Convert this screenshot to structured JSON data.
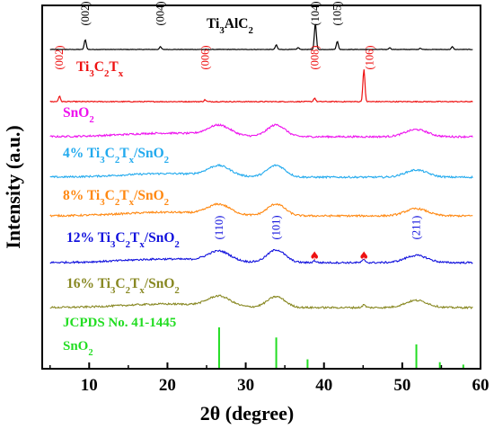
{
  "chart_data": {
    "type": "line",
    "xlabel": "2θ (degree)",
    "ylabel": "Intensity (a.u.)",
    "xlim": [
      4,
      60
    ],
    "x_ticks": [
      10,
      20,
      30,
      40,
      50,
      60
    ],
    "y_ticks_shown": false,
    "grid": false,
    "legend": "inline labels",
    "series": [
      {
        "name_parts": [
          {
            "t": "Ti",
            "s": "n"
          },
          {
            "t": "3",
            "s": "sub"
          },
          {
            "t": "AlC",
            "s": "n"
          },
          {
            "t": "2",
            "s": "sub"
          }
        ],
        "color": "#000000",
        "baseline": 0,
        "noise": 0.25,
        "peaks": [
          {
            "x": 9.5,
            "h": 11
          },
          {
            "x": 19.1,
            "h": 3
          },
          {
            "x": 33.9,
            "h": 5
          },
          {
            "x": 36.7,
            "h": 2
          },
          {
            "x": 38.9,
            "h": 29
          },
          {
            "x": 41.7,
            "h": 9
          },
          {
            "x": 48.4,
            "h": 2
          },
          {
            "x": 52.3,
            "h": 1.5
          },
          {
            "x": 56.4,
            "h": 3
          }
        ],
        "hkl": [
          {
            "x": 9.5,
            "label": "(002)"
          },
          {
            "x": 19.1,
            "label": "(004)"
          },
          {
            "x": 38.9,
            "label": "(104)"
          },
          {
            "x": 41.7,
            "label": "(105)"
          }
        ]
      },
      {
        "name_parts": [
          {
            "t": "Ti",
            "s": "n"
          },
          {
            "t": "3",
            "s": "sub"
          },
          {
            "t": "C",
            "s": "n"
          },
          {
            "t": "2",
            "s": "sub"
          },
          {
            "t": "T",
            "s": "n"
          },
          {
            "t": "x",
            "s": "sub"
          }
        ],
        "color": "#ee1111",
        "baseline": 0,
        "noise": 0.5,
        "peaks": [
          {
            "x": 6.2,
            "h": 6
          },
          {
            "x": 24.8,
            "h": 2
          },
          {
            "x": 38.8,
            "h": 4
          },
          {
            "x": 45.1,
            "h": 36
          }
        ],
        "hkl": [
          {
            "x": 6.2,
            "label": "(002)"
          },
          {
            "x": 24.8,
            "label": "(006)"
          },
          {
            "x": 38.8,
            "label": "(008)"
          },
          {
            "x": 45.8,
            "label": "(106)"
          }
        ]
      },
      {
        "name_parts": [
          {
            "t": "SnO",
            "s": "n"
          },
          {
            "t": "2",
            "s": "sub"
          }
        ],
        "color": "#ee11ee",
        "baseline": 0,
        "noise": 1.0,
        "peaks": [
          {
            "x": 26.6,
            "h": 11,
            "w": 2.0
          },
          {
            "x": 33.9,
            "h": 13,
            "w": 1.6
          },
          {
            "x": 51.8,
            "h": 8,
            "w": 2.0
          }
        ],
        "hkl": []
      },
      {
        "name_parts": [
          {
            "t": "4% Ti",
            "s": "n"
          },
          {
            "t": "3",
            "s": "sub"
          },
          {
            "t": "C",
            "s": "n"
          },
          {
            "t": "2",
            "s": "sub"
          },
          {
            "t": "T",
            "s": "n"
          },
          {
            "t": "x",
            "s": "sub"
          },
          {
            "t": "/SnO",
            "s": "n"
          },
          {
            "t": "2",
            "s": "sub"
          }
        ],
        "color": "#22aaee",
        "baseline": 0,
        "noise": 1.0,
        "peaks": [
          {
            "x": 26.6,
            "h": 11,
            "w": 2.0
          },
          {
            "x": 33.9,
            "h": 13,
            "w": 1.6
          },
          {
            "x": 51.8,
            "h": 8,
            "w": 2.0
          }
        ],
        "hkl": []
      },
      {
        "name_parts": [
          {
            "t": "8% Ti",
            "s": "n"
          },
          {
            "t": "3",
            "s": "sub"
          },
          {
            "t": "C",
            "s": "n"
          },
          {
            "t": "2",
            "s": "sub"
          },
          {
            "t": "T",
            "s": "n"
          },
          {
            "t": "x",
            "s": "sub"
          },
          {
            "t": "/SnO",
            "s": "n"
          },
          {
            "t": "2",
            "s": "sub"
          }
        ],
        "color": "#ff8811",
        "baseline": 0,
        "noise": 1.0,
        "peaks": [
          {
            "x": 26.6,
            "h": 11,
            "w": 2.0
          },
          {
            "x": 33.9,
            "h": 13,
            "w": 1.6
          },
          {
            "x": 51.8,
            "h": 8,
            "w": 2.0
          }
        ],
        "hkl": []
      },
      {
        "name_parts": [
          {
            "t": "12% Ti",
            "s": "n"
          },
          {
            "t": "3",
            "s": "sub"
          },
          {
            "t": "C",
            "s": "n"
          },
          {
            "t": "2",
            "s": "sub"
          },
          {
            "t": "T",
            "s": "n"
          },
          {
            "t": "x",
            "s": "sub"
          },
          {
            "t": "/SnO",
            "s": "n"
          },
          {
            "t": "2",
            "s": "sub"
          }
        ],
        "color": "#1111dd",
        "baseline": 0,
        "noise": 1.0,
        "peaks": [
          {
            "x": 26.6,
            "h": 11,
            "w": 2.0
          },
          {
            "x": 33.9,
            "h": 14,
            "w": 1.6
          },
          {
            "x": 38.8,
            "h": 2,
            "w": 0.3
          },
          {
            "x": 45.1,
            "h": 3,
            "w": 0.3
          },
          {
            "x": 51.8,
            "h": 8,
            "w": 2.0
          }
        ],
        "hkl": [
          {
            "x": 26.6,
            "label": "(110)"
          },
          {
            "x": 33.9,
            "label": "(101)"
          },
          {
            "x": 51.8,
            "label": "(211)"
          }
        ],
        "markers": [
          {
            "x": 38.8,
            "symbol": "♠"
          },
          {
            "x": 45.1,
            "symbol": "♠"
          }
        ]
      },
      {
        "name_parts": [
          {
            "t": "16% Ti",
            "s": "n"
          },
          {
            "t": "3",
            "s": "sub"
          },
          {
            "t": "C",
            "s": "n"
          },
          {
            "t": "2",
            "s": "sub"
          },
          {
            "t": "T",
            "s": "n"
          },
          {
            "t": "x",
            "s": "sub"
          },
          {
            "t": "/SnO",
            "s": "n"
          },
          {
            "t": "2",
            "s": "sub"
          }
        ],
        "color": "#888822",
        "baseline": 0,
        "noise": 1.0,
        "peaks": [
          {
            "x": 26.6,
            "h": 11,
            "w": 2.0
          },
          {
            "x": 33.9,
            "h": 12,
            "w": 1.6
          },
          {
            "x": 45.1,
            "h": 3,
            "w": 0.3
          },
          {
            "x": 51.8,
            "h": 8,
            "w": 2.0
          }
        ],
        "hkl": []
      }
    ],
    "reference": {
      "label_line1": "JCPDS No. 41-1445",
      "label_parts": [
        {
          "t": "SnO",
          "s": "n"
        },
        {
          "t": "2",
          "s": "sub"
        }
      ],
      "color": "#22dd22",
      "sticks": [
        {
          "x": 26.6,
          "h": 100
        },
        {
          "x": 33.9,
          "h": 75
        },
        {
          "x": 37.9,
          "h": 21
        },
        {
          "x": 51.8,
          "h": 58
        },
        {
          "x": 54.8,
          "h": 14
        },
        {
          "x": 57.8,
          "h": 8
        }
      ]
    }
  }
}
